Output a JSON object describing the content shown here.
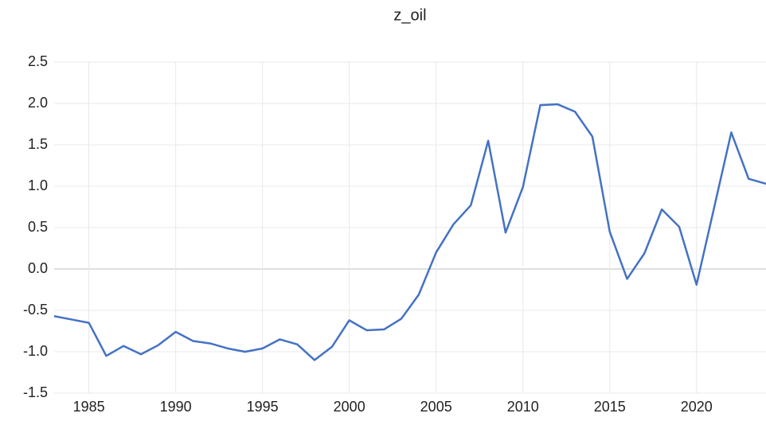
{
  "chart_data": {
    "type": "line",
    "title": "z_oil",
    "x": [
      1983,
      1984,
      1985,
      1986,
      1987,
      1988,
      1989,
      1990,
      1991,
      1992,
      1993,
      1994,
      1995,
      1996,
      1997,
      1998,
      1999,
      2000,
      2001,
      2002,
      2003,
      2004,
      2005,
      2006,
      2007,
      2008,
      2009,
      2010,
      2011,
      2012,
      2013,
      2014,
      2015,
      2016,
      2017,
      2018,
      2019,
      2020,
      2021,
      2022,
      2023,
      2024
    ],
    "series": [
      {
        "name": "z_oil",
        "color": "#4472c4",
        "values": [
          -0.57,
          -0.61,
          -0.65,
          -1.05,
          -0.93,
          -1.03,
          -0.92,
          -0.76,
          -0.87,
          -0.9,
          -0.96,
          -1.0,
          -0.96,
          -0.85,
          -0.91,
          -1.1,
          -0.94,
          -0.62,
          -0.74,
          -0.73,
          -0.6,
          -0.31,
          0.2,
          0.54,
          0.77,
          1.55,
          0.44,
          0.99,
          1.98,
          1.99,
          1.9,
          1.6,
          0.45,
          -0.12,
          0.19,
          0.72,
          0.51,
          -0.19,
          0.73,
          1.65,
          1.09,
          1.03
        ]
      }
    ],
    "xlim": [
      1983,
      2024
    ],
    "xticks": [
      1985,
      1990,
      1995,
      2000,
      2005,
      2010,
      2015,
      2020
    ],
    "ylim": [
      -1.5,
      2.5
    ],
    "yticks": [
      -1.5,
      {
        "value": -1,
        "label": "-1.0"
      },
      -0.5,
      {
        "value": 0,
        "label": "0.0"
      },
      0.5,
      {
        "value": 1,
        "label": "1.0"
      },
      1.5,
      {
        "value": 2,
        "label": "2.0"
      },
      2.5
    ],
    "grid": true
  }
}
